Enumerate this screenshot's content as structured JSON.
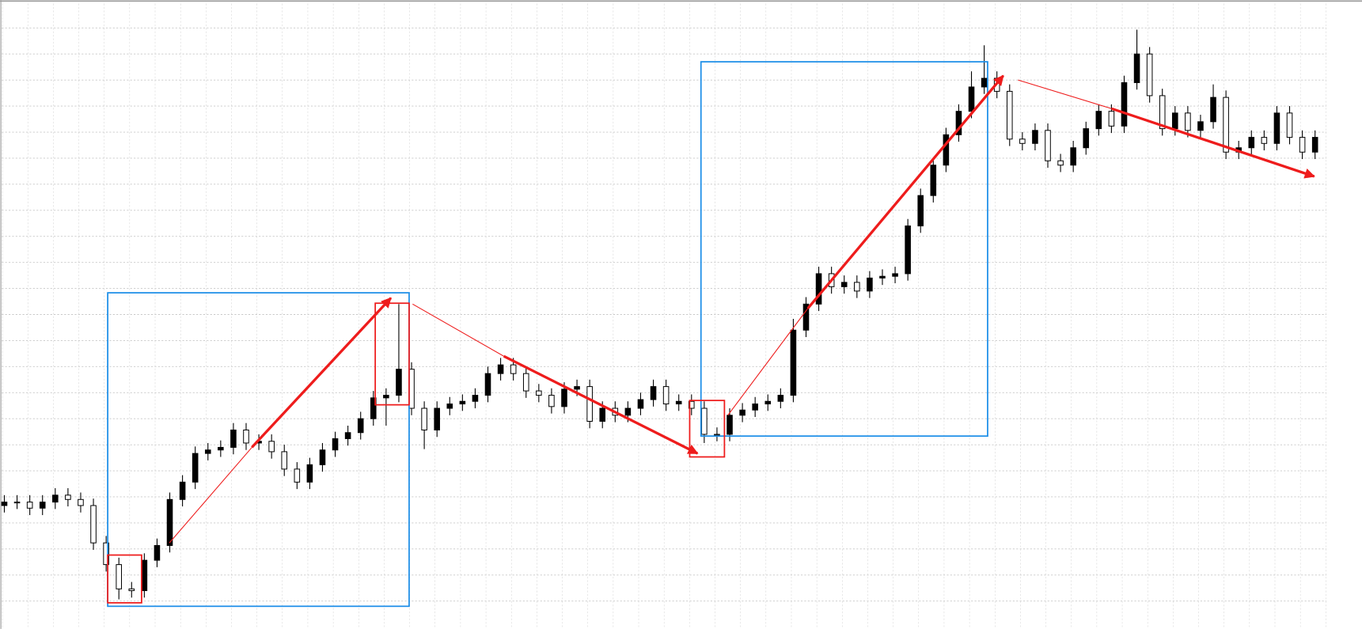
{
  "chart_data": {
    "type": "candlestick",
    "open": [
      140,
      144,
      144,
      137,
      144,
      152,
      147,
      140,
      97,
      72,
      44,
      42,
      77,
      94,
      147,
      167,
      200,
      204,
      207,
      227,
      212,
      214,
      202,
      182,
      167,
      187,
      204,
      217,
      224,
      240,
      264,
      267,
      297,
      252,
      227,
      252,
      257,
      260,
      267,
      292,
      302,
      292,
      272,
      267,
      254,
      274,
      277,
      237,
      252,
      244,
      252,
      262,
      277,
      257,
      260,
      252,
      222,
      222,
      244,
      250,
      257,
      260,
      267,
      342,
      372,
      407,
      392,
      397,
      387,
      402,
      404,
      407,
      462,
      497,
      532,
      567,
      594,
      622,
      632,
      617,
      562,
      557,
      572,
      537,
      532,
      552,
      574,
      594,
      577,
      627,
      660,
      612,
      574,
      592,
      572,
      582,
      610,
      547,
      552,
      564,
      557,
      592,
      564,
      547
    ],
    "high": [
      152,
      152,
      152,
      152,
      160,
      160,
      155,
      148,
      105,
      80,
      52,
      85,
      102,
      155,
      175,
      208,
      212,
      215,
      235,
      235,
      222,
      222,
      210,
      190,
      195,
      212,
      225,
      232,
      248,
      272,
      275,
      372,
      305,
      260,
      260,
      265,
      268,
      275,
      300,
      310,
      310,
      300,
      280,
      275,
      282,
      285,
      285,
      260,
      260,
      260,
      270,
      285,
      285,
      268,
      268,
      260,
      230,
      252,
      258,
      265,
      268,
      275,
      355,
      380,
      415,
      415,
      405,
      405,
      410,
      412,
      415,
      470,
      505,
      540,
      575,
      602,
      640,
      670,
      640,
      625,
      570,
      580,
      580,
      545,
      560,
      582,
      602,
      602,
      635,
      688,
      668,
      620,
      600,
      600,
      590,
      625,
      618,
      560,
      572,
      572,
      600,
      600,
      572,
      572
    ],
    "low": [
      132,
      136,
      129,
      129,
      136,
      139,
      132,
      89,
      64,
      32,
      34,
      34,
      69,
      86,
      139,
      159,
      192,
      196,
      199,
      204,
      204,
      194,
      174,
      159,
      159,
      179,
      196,
      209,
      216,
      232,
      232,
      259,
      244,
      205,
      219,
      244,
      249,
      252,
      259,
      284,
      284,
      264,
      259,
      246,
      246,
      266,
      229,
      229,
      236,
      236,
      244,
      254,
      249,
      249,
      244,
      212,
      214,
      214,
      236,
      242,
      249,
      252,
      259,
      334,
      364,
      384,
      384,
      379,
      379,
      394,
      396,
      399,
      454,
      489,
      524,
      559,
      586,
      614,
      609,
      554,
      549,
      549,
      529,
      524,
      524,
      544,
      566,
      569,
      569,
      619,
      604,
      566,
      566,
      564,
      564,
      574,
      539,
      539,
      544,
      549,
      549,
      556,
      539,
      539
    ],
    "close": [
      144,
      144,
      137,
      144,
      152,
      147,
      140,
      97,
      72,
      44,
      42,
      77,
      94,
      147,
      167,
      200,
      204,
      207,
      227,
      212,
      214,
      202,
      182,
      167,
      187,
      204,
      217,
      224,
      240,
      264,
      267,
      297,
      252,
      227,
      252,
      257,
      260,
      267,
      292,
      302,
      292,
      272,
      267,
      254,
      274,
      277,
      237,
      252,
      244,
      252,
      262,
      277,
      257,
      260,
      252,
      222,
      222,
      244,
      250,
      257,
      260,
      267,
      342,
      372,
      407,
      392,
      397,
      387,
      402,
      404,
      407,
      462,
      497,
      532,
      567,
      594,
      622,
      632,
      617,
      562,
      557,
      572,
      537,
      532,
      552,
      574,
      594,
      577,
      627,
      660,
      612,
      574,
      592,
      572,
      582,
      610,
      547,
      552,
      564,
      557,
      592,
      564,
      547,
      564
    ],
    "up_color": "#000000",
    "down_color": "#ffffff",
    "ylim": [
      0,
      720
    ],
    "yticks": [
      30,
      60,
      90,
      120,
      150,
      180,
      210,
      240,
      270,
      300,
      330,
      360,
      390,
      420,
      450,
      480,
      510,
      540,
      570,
      600,
      630,
      660,
      690
    ],
    "grid": true
  }
}
